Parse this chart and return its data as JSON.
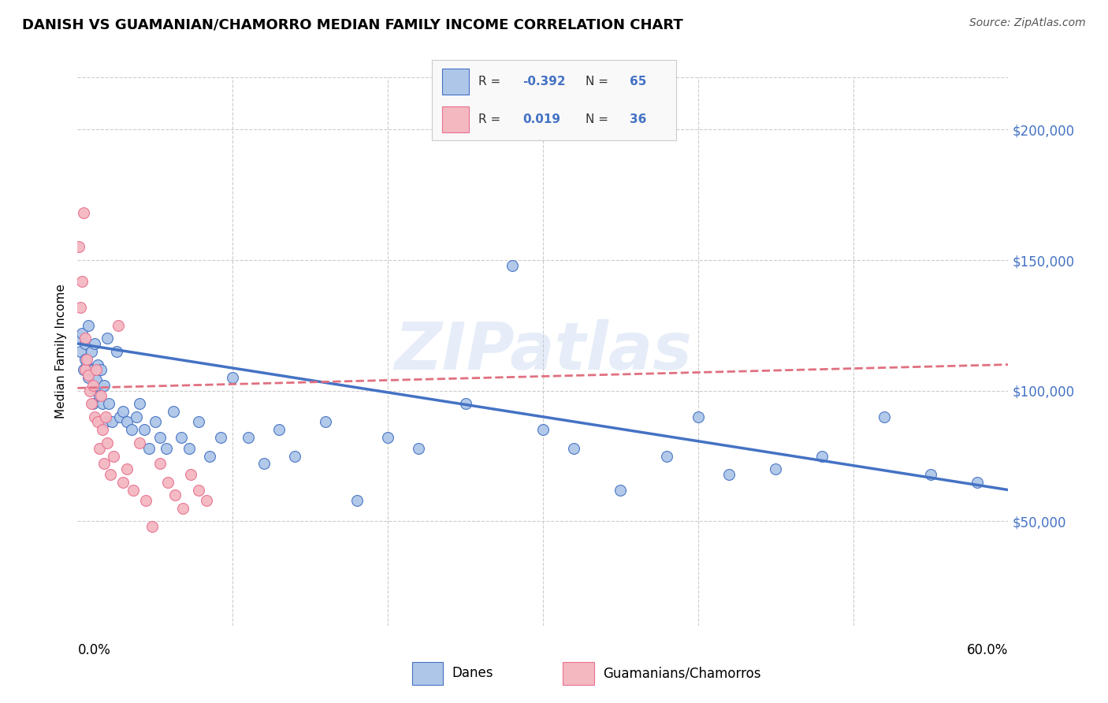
{
  "title": "DANISH VS GUAMANIAN/CHAMORRO MEDIAN FAMILY INCOME CORRELATION CHART",
  "source": "Source: ZipAtlas.com",
  "ylabel": "Median Family Income",
  "y_ticks": [
    50000,
    100000,
    150000,
    200000
  ],
  "y_tick_labels": [
    "$50,000",
    "$100,000",
    "$150,000",
    "$200,000"
  ],
  "x_min": 0.0,
  "x_max": 0.6,
  "y_min": 10000,
  "y_max": 220000,
  "danes_color": "#aec6e8",
  "danes_color_dark": "#4472c4",
  "guam_color": "#f4b8c1",
  "guam_color_dark": "#e87090",
  "danes_line_color": "#4472c4",
  "guam_line_color": "#e07080",
  "watermark": "ZIPatlas",
  "danes_trend_x0": 0.0,
  "danes_trend_y0": 118000,
  "danes_trend_x1": 0.6,
  "danes_trend_y1": 62000,
  "guam_trend_x0": 0.0,
  "guam_trend_y0": 101000,
  "guam_trend_x1": 0.6,
  "guam_trend_y1": 110000,
  "danes_x": [
    0.001,
    0.002,
    0.003,
    0.004,
    0.005,
    0.005,
    0.006,
    0.007,
    0.007,
    0.008,
    0.009,
    0.01,
    0.01,
    0.011,
    0.012,
    0.013,
    0.013,
    0.014,
    0.015,
    0.016,
    0.017,
    0.018,
    0.019,
    0.02,
    0.022,
    0.025,
    0.027,
    0.029,
    0.032,
    0.035,
    0.038,
    0.04,
    0.043,
    0.046,
    0.05,
    0.053,
    0.057,
    0.062,
    0.067,
    0.072,
    0.078,
    0.085,
    0.092,
    0.1,
    0.11,
    0.12,
    0.13,
    0.14,
    0.16,
    0.18,
    0.2,
    0.22,
    0.25,
    0.28,
    0.3,
    0.32,
    0.35,
    0.38,
    0.4,
    0.42,
    0.45,
    0.48,
    0.52,
    0.55,
    0.58
  ],
  "danes_y": [
    120000,
    115000,
    122000,
    108000,
    118000,
    112000,
    110000,
    125000,
    105000,
    108000,
    115000,
    108000,
    95000,
    118000,
    104000,
    100000,
    110000,
    98000,
    108000,
    95000,
    102000,
    88000,
    120000,
    95000,
    88000,
    115000,
    90000,
    92000,
    88000,
    85000,
    90000,
    95000,
    85000,
    78000,
    88000,
    82000,
    78000,
    92000,
    82000,
    78000,
    88000,
    75000,
    82000,
    105000,
    82000,
    72000,
    85000,
    75000,
    88000,
    58000,
    82000,
    78000,
    95000,
    148000,
    85000,
    78000,
    62000,
    75000,
    90000,
    68000,
    70000,
    75000,
    90000,
    68000,
    65000
  ],
  "guam_x": [
    0.001,
    0.002,
    0.003,
    0.004,
    0.005,
    0.005,
    0.006,
    0.007,
    0.008,
    0.009,
    0.01,
    0.011,
    0.012,
    0.013,
    0.014,
    0.015,
    0.016,
    0.017,
    0.018,
    0.019,
    0.021,
    0.023,
    0.026,
    0.029,
    0.032,
    0.036,
    0.04,
    0.044,
    0.048,
    0.053,
    0.058,
    0.063,
    0.068,
    0.073,
    0.078,
    0.083
  ],
  "guam_y": [
    155000,
    132000,
    142000,
    168000,
    120000,
    108000,
    112000,
    106000,
    100000,
    95000,
    102000,
    90000,
    108000,
    88000,
    78000,
    98000,
    85000,
    72000,
    90000,
    80000,
    68000,
    75000,
    125000,
    65000,
    70000,
    62000,
    80000,
    58000,
    48000,
    72000,
    65000,
    60000,
    55000,
    68000,
    62000,
    58000
  ]
}
